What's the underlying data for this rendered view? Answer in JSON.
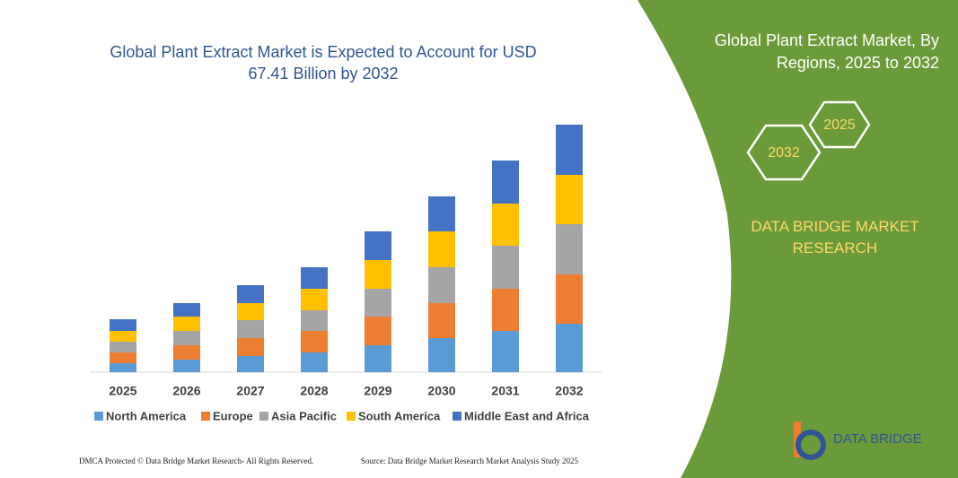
{
  "chart_data": {
    "type": "stacked-bar",
    "title": "Global Plant Extract Market is Expected to Account for USD 67.41 Billion by 2032",
    "categories": [
      "2025",
      "2026",
      "2027",
      "2028",
      "2029",
      "2030",
      "2031",
      "2032"
    ],
    "series": [
      {
        "name": "North America",
        "color": "#5b9bd5",
        "values": [
          10,
          14,
          18,
          22,
          30,
          38,
          46,
          54
        ]
      },
      {
        "name": "Europe",
        "color": "#ed7d31",
        "values": [
          12,
          16,
          20,
          24,
          32,
          39,
          47,
          55
        ]
      },
      {
        "name": "Asia Pacific",
        "color": "#a5a5a5",
        "values": [
          12,
          16,
          20,
          23,
          31,
          40,
          48,
          56
        ]
      },
      {
        "name": "South America",
        "color": "#ffc000",
        "values": [
          12,
          16,
          19,
          24,
          32,
          40,
          47,
          55
        ]
      },
      {
        "name": "Middle East and Africa",
        "color": "#4472c4",
        "values": [
          13,
          15,
          20,
          24,
          32,
          39,
          48,
          56
        ]
      }
    ]
  },
  "panel": {
    "title": "Global Plant Extract Market, By Regions, 2025 to 2032",
    "hex_left": "2032",
    "hex_right": "2025",
    "brand": "DATA BRIDGE MARKET RESEARCH",
    "logo": "DATA BRIDGE"
  },
  "footer": {
    "left": "DMCA Protected © Data Bridge Market Research- All Rights Reserved.",
    "right": "Source: Data Bridge Market Research Market Analysis Study 2025"
  }
}
